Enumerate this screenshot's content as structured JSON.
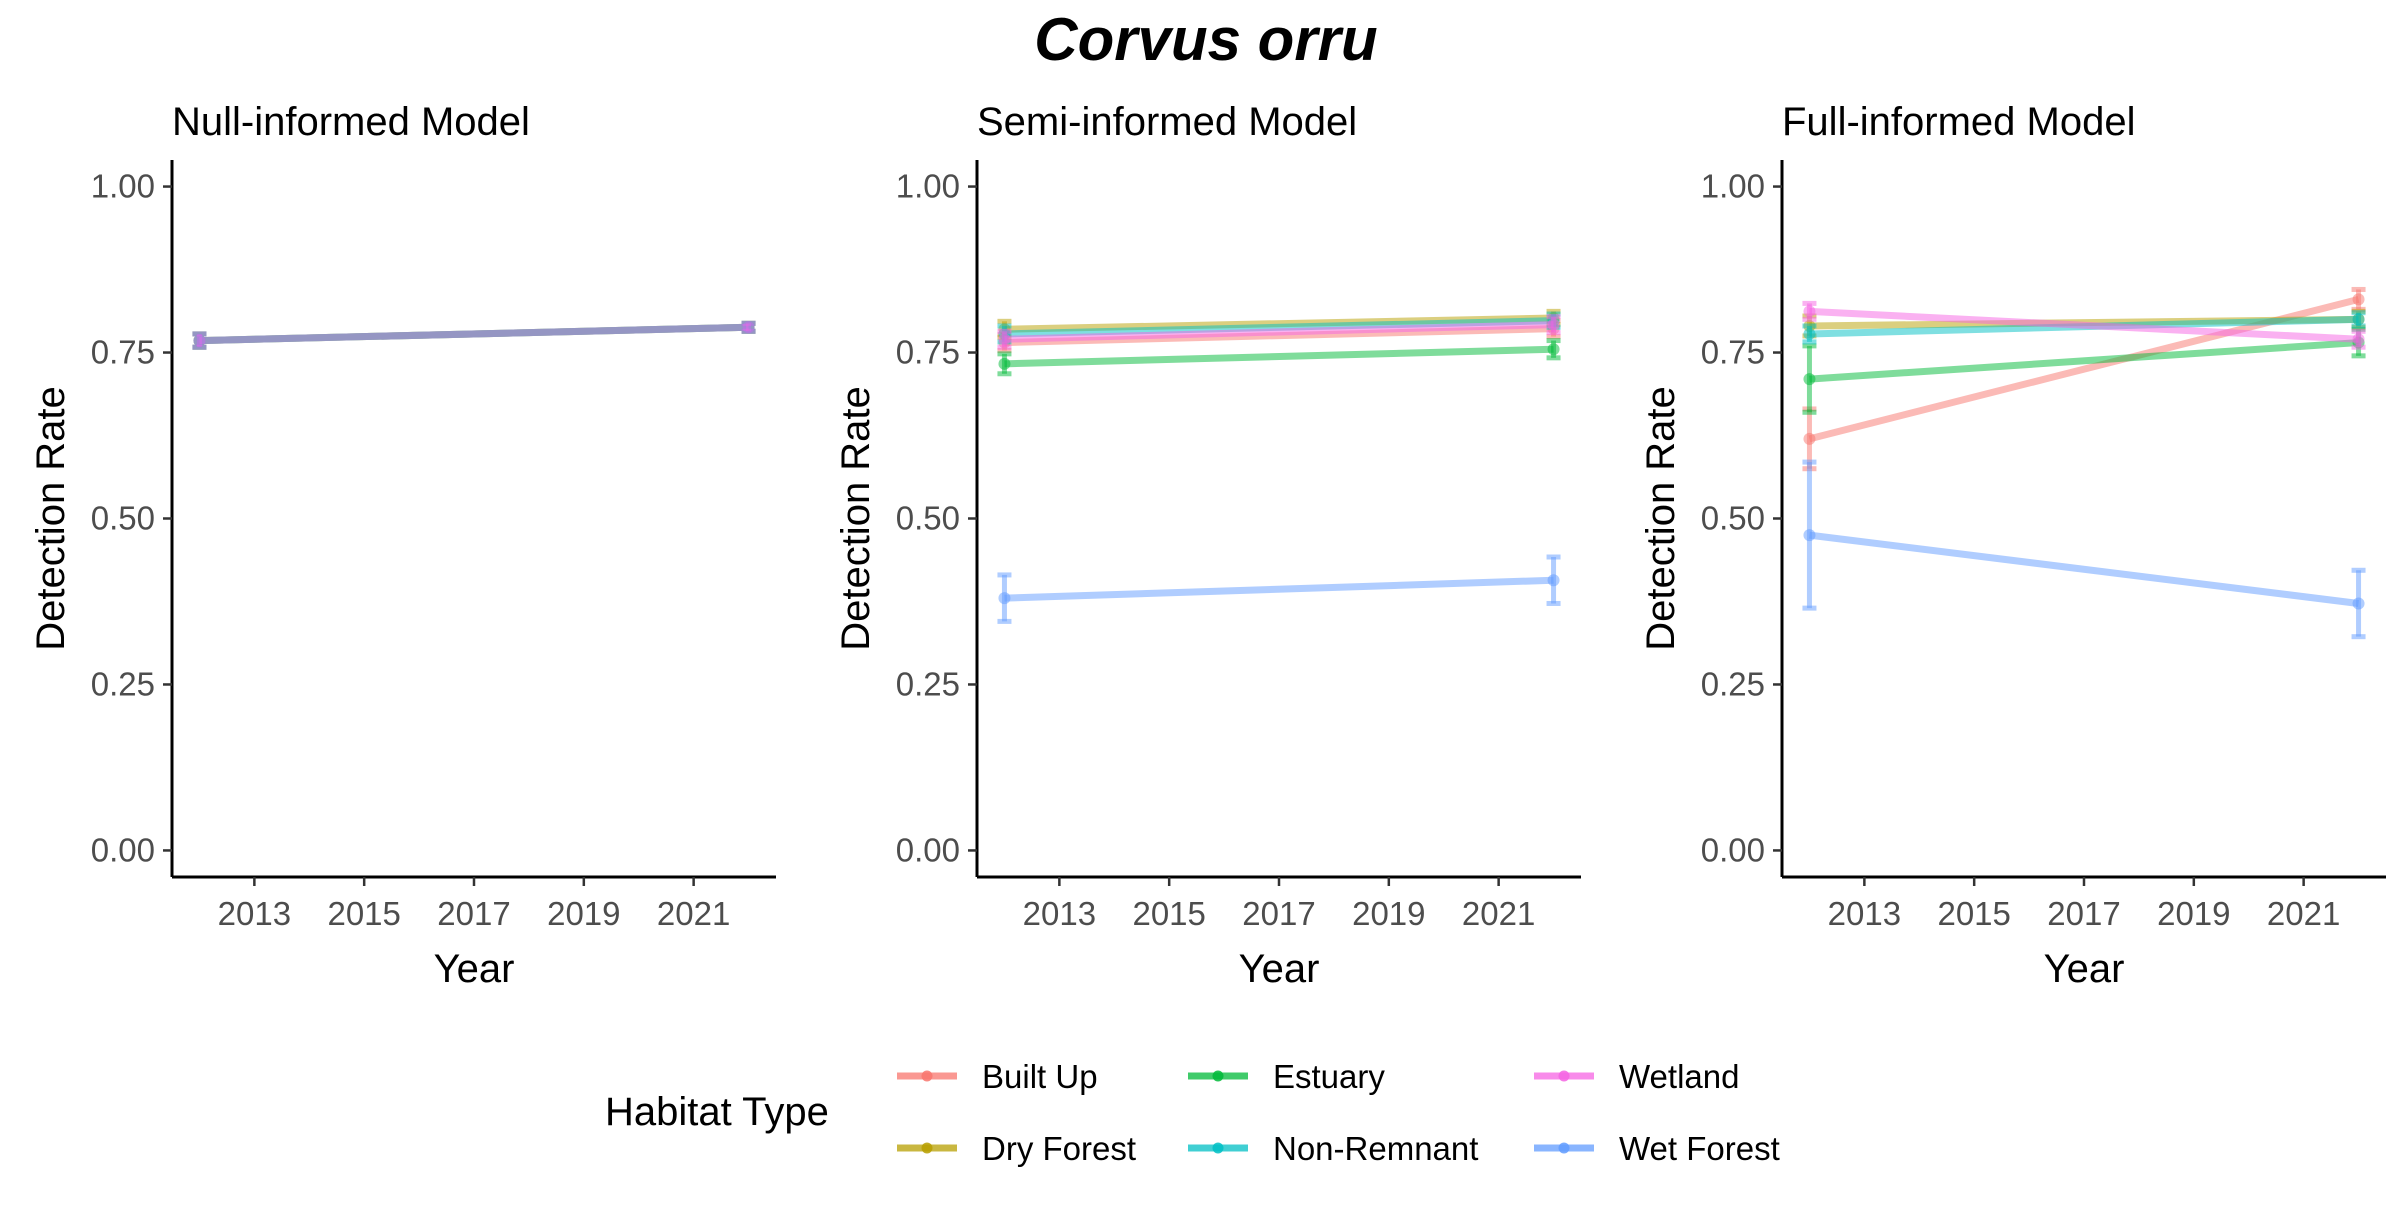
{
  "chart_data": {
    "type": "line",
    "title": "Corvus orru",
    "xlabel": "Year",
    "ylabel": "Detection Rate",
    "x_ticks": [
      "2013",
      "2015",
      "2017",
      "2019",
      "2021"
    ],
    "y_ticks": [
      "0.00",
      "0.25",
      "0.50",
      "0.75",
      "1.00"
    ],
    "xlim": [
      2011.5,
      2022.5
    ],
    "ylim": [
      -0.04,
      1.04
    ],
    "grid": false,
    "legend": {
      "title": "Habitat Type",
      "placement": "bottom",
      "entries": [
        "Built Up",
        "Dry Forest",
        "Estuary",
        "Non-Remnant",
        "Wetland",
        "Wet Forest"
      ]
    },
    "series_colors": {
      "Built Up": "#F8766D",
      "Dry Forest": "#B79F00",
      "Estuary": "#00BA38",
      "Non-Remnant": "#00BFC4",
      "Wet Forest": "#619CFF",
      "Wetland": "#F564E3"
    },
    "panels": [
      {
        "title": "Null-informed Model",
        "series": [
          {
            "name": "Built Up",
            "x": [
              2012,
              2022
            ],
            "y": [
              0.768,
              0.788
            ],
            "err": [
              0.01,
              0.006
            ]
          },
          {
            "name": "Dry Forest",
            "x": [
              2012,
              2022
            ],
            "y": [
              0.768,
              0.788
            ],
            "err": [
              0.01,
              0.006
            ]
          },
          {
            "name": "Estuary",
            "x": [
              2012,
              2022
            ],
            "y": [
              0.768,
              0.788
            ],
            "err": [
              0.01,
              0.006
            ]
          },
          {
            "name": "Non-Remnant",
            "x": [
              2012,
              2022
            ],
            "y": [
              0.768,
              0.788
            ],
            "err": [
              0.01,
              0.006
            ]
          },
          {
            "name": "Wetland",
            "x": [
              2012,
              2022
            ],
            "y": [
              0.768,
              0.788
            ],
            "err": [
              0.01,
              0.006
            ]
          },
          {
            "name": "Wet Forest",
            "x": [
              2012,
              2022
            ],
            "y": [
              0.768,
              0.788
            ],
            "err": [
              0.01,
              0.006
            ]
          }
        ]
      },
      {
        "title": "Semi-informed Model",
        "series": [
          {
            "name": "Built Up",
            "x": [
              2012,
              2022
            ],
            "y": [
              0.765,
              0.786
            ],
            "err": [
              0.012,
              0.012
            ]
          },
          {
            "name": "Dry Forest",
            "x": [
              2012,
              2022
            ],
            "y": [
              0.785,
              0.802
            ],
            "err": [
              0.012,
              0.01
            ]
          },
          {
            "name": "Estuary",
            "x": [
              2012,
              2022
            ],
            "y": [
              0.733,
              0.755
            ],
            "err": [
              0.015,
              0.013
            ]
          },
          {
            "name": "Non-Remnant",
            "x": [
              2012,
              2022
            ],
            "y": [
              0.778,
              0.798
            ],
            "err": [
              0.012,
              0.01
            ]
          },
          {
            "name": "Wetland",
            "x": [
              2012,
              2022
            ],
            "y": [
              0.77,
              0.792
            ],
            "err": [
              0.012,
              0.012
            ]
          },
          {
            "name": "Wet Forest",
            "x": [
              2012,
              2022
            ],
            "y": [
              0.38,
              0.407
            ],
            "err": [
              0.035,
              0.035
            ]
          }
        ]
      },
      {
        "title": "Full-informed Model",
        "series": [
          {
            "name": "Built Up",
            "x": [
              2012,
              2022
            ],
            "y": [
              0.62,
              0.83
            ],
            "err": [
              0.045,
              0.015
            ]
          },
          {
            "name": "Dry Forest",
            "x": [
              2012,
              2022
            ],
            "y": [
              0.79,
              0.8
            ],
            "err": [
              0.015,
              0.012
            ]
          },
          {
            "name": "Estuary",
            "x": [
              2012,
              2022
            ],
            "y": [
              0.71,
              0.765
            ],
            "err": [
              0.05,
              0.02
            ]
          },
          {
            "name": "Non-Remnant",
            "x": [
              2012,
              2022
            ],
            "y": [
              0.778,
              0.8
            ],
            "err": [
              0.012,
              0.01
            ]
          },
          {
            "name": "Wetland",
            "x": [
              2012,
              2022
            ],
            "y": [
              0.812,
              0.77
            ],
            "err": [
              0.012,
              0.012
            ]
          },
          {
            "name": "Wet Forest",
            "x": [
              2012,
              2022
            ],
            "y": [
              0.475,
              0.372
            ],
            "err": [
              0.11,
              0.05
            ]
          }
        ]
      }
    ]
  }
}
